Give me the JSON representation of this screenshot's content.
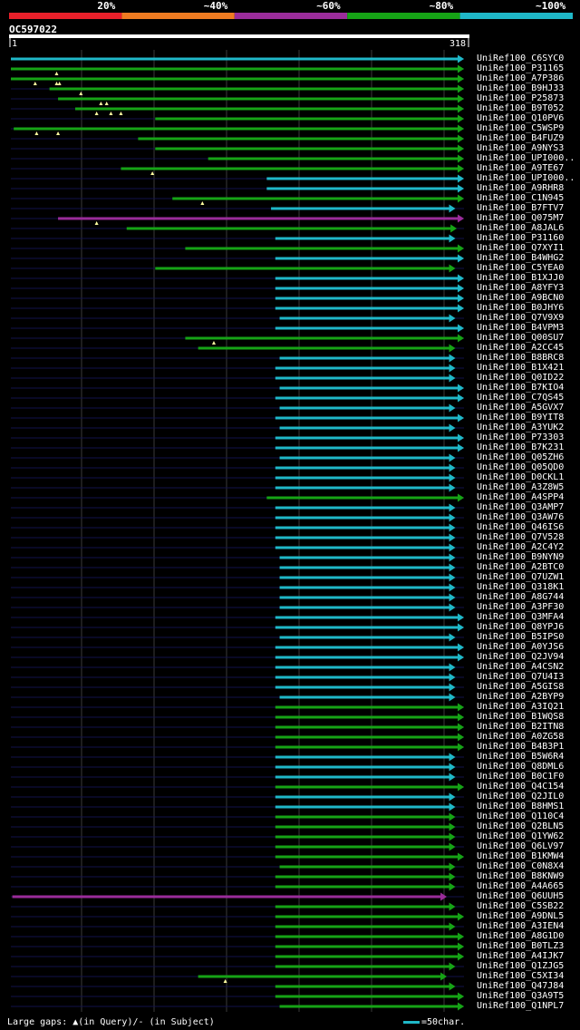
{
  "query": {
    "name": "OC597022",
    "start": "1",
    "end": "318",
    "length": 318
  },
  "identity_scale": [
    {
      "label": "20%",
      "color": "#e8202a"
    },
    {
      "label": "~40%",
      "color": "#ef7b21"
    },
    {
      "label": "~60%",
      "color": "#9a2c9a"
    },
    {
      "label": "~80%",
      "color": "#16a316"
    },
    {
      "label": "~100%",
      "color": "#1fb8c8"
    }
  ],
  "footer": {
    "gaps_text": "Large gaps: ▲(in Query)/- (in Subject)",
    "scale_text": "=50char."
  },
  "hits": [
    {
      "id": "UniRef100_C6SYC0",
      "color": "cyan",
      "qs": 1,
      "qe": 318,
      "arrow": "full",
      "ticks": []
    },
    {
      "id": "UniRef100_P31165",
      "color": "green",
      "qs": 1,
      "qe": 318,
      "arrow": "full",
      "ticks": [
        33
      ]
    },
    {
      "id": "UniRef100_A7P386",
      "color": "green",
      "qs": 1,
      "qe": 318,
      "arrow": "full",
      "ticks": [
        18,
        33,
        35
      ]
    },
    {
      "id": "UniRef100_B9HJ33",
      "color": "green",
      "qs": 28,
      "qe": 318,
      "arrow": "full",
      "ticks": [
        50
      ]
    },
    {
      "id": "UniRef100_P25873",
      "color": "green",
      "qs": 34,
      "qe": 318,
      "arrow": "full",
      "ticks": [
        64,
        68
      ]
    },
    {
      "id": "UniRef100_B9T052",
      "color": "green",
      "qs": 46,
      "qe": 318,
      "arrow": "full",
      "ticks": [
        61,
        71,
        78
      ]
    },
    {
      "id": "UniRef100_Q10PV6",
      "color": "green",
      "qs": 102,
      "qe": 318,
      "arrow": "full",
      "ticks": []
    },
    {
      "id": "UniRef100_C5WSP9",
      "color": "green",
      "qs": 3,
      "qe": 318,
      "arrow": "full",
      "ticks": [
        19,
        34
      ]
    },
    {
      "id": "UniRef100_B4FUZ9",
      "color": "green",
      "qs": 90,
      "qe": 318,
      "arrow": "full",
      "ticks": []
    },
    {
      "id": "UniRef100_A9NYS3",
      "color": "green",
      "qs": 102,
      "qe": 318,
      "arrow": "full",
      "ticks": []
    },
    {
      "id": "UniRef100_UPI000..",
      "color": "green",
      "qs": 139,
      "qe": 318,
      "arrow": "full",
      "ticks": []
    },
    {
      "id": "UniRef100_A9TE67",
      "color": "green",
      "qs": 78,
      "qe": 318,
      "arrow": "full",
      "ticks": [
        100
      ]
    },
    {
      "id": "UniRef100_UPI000..",
      "color": "cyan",
      "qs": 180,
      "qe": 318,
      "arrow": "full",
      "ticks": []
    },
    {
      "id": "UniRef100_A9RHR8",
      "color": "cyan",
      "qs": 180,
      "qe": 318,
      "arrow": "full",
      "ticks": []
    },
    {
      "id": "UniRef100_C1N945",
      "color": "green",
      "qs": 114,
      "qe": 318,
      "arrow": "full",
      "ticks": [
        135
      ]
    },
    {
      "id": "UniRef100_B7FTV7",
      "color": "cyan",
      "qs": 183,
      "qe": 312,
      "arrow": "short",
      "ticks": []
    },
    {
      "id": "UniRef100_Q075M7",
      "color": "magenta",
      "qs": 34,
      "qe": 318,
      "arrow": "full",
      "ticks": [
        61
      ]
    },
    {
      "id": "UniRef100_A8JAL6",
      "color": "green",
      "qs": 82,
      "qe": 313,
      "arrow": "short",
      "ticks": []
    },
    {
      "id": "UniRef100_P31160",
      "color": "cyan",
      "qs": 186,
      "qe": 312,
      "arrow": "short",
      "ticks": []
    },
    {
      "id": "UniRef100_Q7XYI1",
      "color": "green",
      "qs": 123,
      "qe": 318,
      "arrow": "full",
      "ticks": []
    },
    {
      "id": "UniRef100_B4WHG2",
      "color": "cyan",
      "qs": 186,
      "qe": 318,
      "arrow": "full",
      "ticks": []
    },
    {
      "id": "UniRef100_C5YEA0",
      "color": "green",
      "qs": 102,
      "qe": 312,
      "arrow": "short",
      "ticks": []
    },
    {
      "id": "UniRef100_B1XJJ0",
      "color": "cyan",
      "qs": 186,
      "qe": 318,
      "arrow": "full",
      "ticks": []
    },
    {
      "id": "UniRef100_A8YFY3",
      "color": "cyan",
      "qs": 186,
      "qe": 318,
      "arrow": "full",
      "ticks": []
    },
    {
      "id": "UniRef100_A9BCN0",
      "color": "cyan",
      "qs": 186,
      "qe": 318,
      "arrow": "full",
      "ticks": []
    },
    {
      "id": "UniRef100_B0JHY6",
      "color": "cyan",
      "qs": 186,
      "qe": 318,
      "arrow": "full",
      "ticks": []
    },
    {
      "id": "UniRef100_Q7V9X9",
      "color": "cyan",
      "qs": 189,
      "qe": 312,
      "arrow": "short",
      "ticks": []
    },
    {
      "id": "UniRef100_B4VPM3",
      "color": "cyan",
      "qs": 186,
      "qe": 318,
      "arrow": "full",
      "ticks": []
    },
    {
      "id": "UniRef100_Q00SU7",
      "color": "green",
      "qs": 123,
      "qe": 318,
      "arrow": "full",
      "ticks": [
        143
      ]
    },
    {
      "id": "UniRef100_A2CC45",
      "color": "green",
      "qs": 132,
      "qe": 312,
      "arrow": "short",
      "ticks": []
    },
    {
      "id": "UniRef100_B8BRC8",
      "color": "cyan",
      "qs": 189,
      "qe": 312,
      "arrow": "short",
      "ticks": []
    },
    {
      "id": "UniRef100_B1X421",
      "color": "cyan",
      "qs": 186,
      "qe": 312,
      "arrow": "short",
      "ticks": []
    },
    {
      "id": "UniRef100_Q0ID22",
      "color": "cyan",
      "qs": 186,
      "qe": 312,
      "arrow": "short",
      "ticks": []
    },
    {
      "id": "UniRef100_B7KIO4",
      "color": "cyan",
      "qs": 189,
      "qe": 318,
      "arrow": "full",
      "ticks": []
    },
    {
      "id": "UniRef100_C7QS45",
      "color": "cyan",
      "qs": 186,
      "qe": 318,
      "arrow": "full",
      "ticks": []
    },
    {
      "id": "UniRef100_A5GVX7",
      "color": "cyan",
      "qs": 189,
      "qe": 312,
      "arrow": "short",
      "ticks": []
    },
    {
      "id": "UniRef100_B9YIT8",
      "color": "cyan",
      "qs": 186,
      "qe": 318,
      "arrow": "full",
      "ticks": []
    },
    {
      "id": "UniRef100_A3YUK2",
      "color": "cyan",
      "qs": 189,
      "qe": 312,
      "arrow": "short",
      "ticks": []
    },
    {
      "id": "UniRef100_P73303",
      "color": "cyan",
      "qs": 186,
      "qe": 318,
      "arrow": "full",
      "ticks": []
    },
    {
      "id": "UniRef100_B7K231",
      "color": "cyan",
      "qs": 186,
      "qe": 318,
      "arrow": "full",
      "ticks": []
    },
    {
      "id": "UniRef100_Q05ZH6",
      "color": "cyan",
      "qs": 189,
      "qe": 312,
      "arrow": "short",
      "ticks": []
    },
    {
      "id": "UniRef100_Q05QD0",
      "color": "cyan",
      "qs": 186,
      "qe": 312,
      "arrow": "short",
      "ticks": []
    },
    {
      "id": "UniRef100_D0CKL1",
      "color": "cyan",
      "qs": 186,
      "qe": 312,
      "arrow": "short",
      "ticks": []
    },
    {
      "id": "UniRef100_A3Z8W5",
      "color": "cyan",
      "qs": 186,
      "qe": 312,
      "arrow": "short",
      "ticks": []
    },
    {
      "id": "UniRef100_A4SPP4",
      "color": "green",
      "qs": 180,
      "qe": 318,
      "arrow": "full",
      "ticks": []
    },
    {
      "id": "UniRef100_Q3AMP7",
      "color": "cyan",
      "qs": 186,
      "qe": 312,
      "arrow": "short",
      "ticks": []
    },
    {
      "id": "UniRef100_Q3AW76",
      "color": "cyan",
      "qs": 186,
      "qe": 312,
      "arrow": "short",
      "ticks": []
    },
    {
      "id": "UniRef100_Q46IS6",
      "color": "cyan",
      "qs": 186,
      "qe": 312,
      "arrow": "short",
      "ticks": []
    },
    {
      "id": "UniRef100_Q7V528",
      "color": "cyan",
      "qs": 186,
      "qe": 312,
      "arrow": "short",
      "ticks": []
    },
    {
      "id": "UniRef100_A2C4Y2",
      "color": "cyan",
      "qs": 186,
      "qe": 312,
      "arrow": "short",
      "ticks": []
    },
    {
      "id": "UniRef100_B9NYN9",
      "color": "cyan",
      "qs": 189,
      "qe": 312,
      "arrow": "short",
      "ticks": []
    },
    {
      "id": "UniRef100_A2BTC0",
      "color": "cyan",
      "qs": 189,
      "qe": 312,
      "arrow": "short",
      "ticks": []
    },
    {
      "id": "UniRef100_Q7UZW1",
      "color": "cyan",
      "qs": 189,
      "qe": 312,
      "arrow": "short",
      "ticks": []
    },
    {
      "id": "UniRef100_Q318K1",
      "color": "cyan",
      "qs": 189,
      "qe": 312,
      "arrow": "short",
      "ticks": []
    },
    {
      "id": "UniRef100_A8G744",
      "color": "cyan",
      "qs": 189,
      "qe": 312,
      "arrow": "short",
      "ticks": []
    },
    {
      "id": "UniRef100_A3PF30",
      "color": "cyan",
      "qs": 189,
      "qe": 312,
      "arrow": "short",
      "ticks": []
    },
    {
      "id": "UniRef100_Q3MFA4",
      "color": "cyan",
      "qs": 186,
      "qe": 318,
      "arrow": "full",
      "ticks": []
    },
    {
      "id": "UniRef100_Q8YPJ6",
      "color": "cyan",
      "qs": 186,
      "qe": 318,
      "arrow": "full",
      "ticks": []
    },
    {
      "id": "UniRef100_B5IPS0",
      "color": "cyan",
      "qs": 189,
      "qe": 312,
      "arrow": "short",
      "ticks": []
    },
    {
      "id": "UniRef100_A0YJS6",
      "color": "cyan",
      "qs": 186,
      "qe": 318,
      "arrow": "full",
      "ticks": []
    },
    {
      "id": "UniRef100_Q2JV94",
      "color": "cyan",
      "qs": 186,
      "qe": 318,
      "arrow": "full",
      "ticks": []
    },
    {
      "id": "UniRef100_A4CSN2",
      "color": "cyan",
      "qs": 186,
      "qe": 312,
      "arrow": "short",
      "ticks": []
    },
    {
      "id": "UniRef100_Q7U4I3",
      "color": "cyan",
      "qs": 186,
      "qe": 312,
      "arrow": "short",
      "ticks": []
    },
    {
      "id": "UniRef100_A5GIS8",
      "color": "cyan",
      "qs": 186,
      "qe": 312,
      "arrow": "short",
      "ticks": []
    },
    {
      "id": "UniRef100_A2BYP9",
      "color": "cyan",
      "qs": 189,
      "qe": 312,
      "arrow": "short",
      "ticks": []
    },
    {
      "id": "UniRef100_A3IQ21",
      "color": "green",
      "qs": 186,
      "qe": 318,
      "arrow": "full",
      "ticks": []
    },
    {
      "id": "UniRef100_B1WQS8",
      "color": "green",
      "qs": 186,
      "qe": 318,
      "arrow": "full",
      "ticks": []
    },
    {
      "id": "UniRef100_B2ITN8",
      "color": "green",
      "qs": 186,
      "qe": 318,
      "arrow": "full",
      "ticks": []
    },
    {
      "id": "UniRef100_A0ZG58",
      "color": "green",
      "qs": 186,
      "qe": 318,
      "arrow": "full",
      "ticks": []
    },
    {
      "id": "UniRef100_B4B3P1",
      "color": "green",
      "qs": 186,
      "qe": 318,
      "arrow": "full",
      "ticks": []
    },
    {
      "id": "UniRef100_B5W6R4",
      "color": "cyan",
      "qs": 186,
      "qe": 312,
      "arrow": "short",
      "ticks": []
    },
    {
      "id": "UniRef100_Q8DML6",
      "color": "cyan",
      "qs": 186,
      "qe": 312,
      "arrow": "short",
      "ticks": []
    },
    {
      "id": "UniRef100_B0C1F0",
      "color": "cyan",
      "qs": 186,
      "qe": 312,
      "arrow": "short",
      "ticks": []
    },
    {
      "id": "UniRef100_Q4C154",
      "color": "green",
      "qs": 186,
      "qe": 318,
      "arrow": "full",
      "ticks": []
    },
    {
      "id": "UniRef100_Q2JIL0",
      "color": "cyan",
      "qs": 186,
      "qe": 312,
      "arrow": "short",
      "ticks": []
    },
    {
      "id": "UniRef100_B8HMS1",
      "color": "cyan",
      "qs": 186,
      "qe": 312,
      "arrow": "short",
      "ticks": []
    },
    {
      "id": "UniRef100_Q110C4",
      "color": "green",
      "qs": 186,
      "qe": 312,
      "arrow": "short",
      "ticks": []
    },
    {
      "id": "UniRef100_Q2BLN5",
      "color": "green",
      "qs": 186,
      "qe": 312,
      "arrow": "short",
      "ticks": []
    },
    {
      "id": "UniRef100_Q1YW62",
      "color": "green",
      "qs": 186,
      "qe": 312,
      "arrow": "short",
      "ticks": []
    },
    {
      "id": "UniRef100_Q6LV97",
      "color": "green",
      "qs": 186,
      "qe": 312,
      "arrow": "short",
      "ticks": []
    },
    {
      "id": "UniRef100_B1KMW4",
      "color": "green",
      "qs": 186,
      "qe": 318,
      "arrow": "full",
      "ticks": []
    },
    {
      "id": "UniRef100_C0N8X4",
      "color": "green",
      "qs": 189,
      "qe": 312,
      "arrow": "short",
      "ticks": []
    },
    {
      "id": "UniRef100_B8KNW9",
      "color": "green",
      "qs": 186,
      "qe": 312,
      "arrow": "short",
      "ticks": []
    },
    {
      "id": "UniRef100_A4A665",
      "color": "green",
      "qs": 186,
      "qe": 312,
      "arrow": "short",
      "ticks": []
    },
    {
      "id": "UniRef100_Q6UUH5",
      "color": "magenta",
      "qs": 2,
      "qe": 306,
      "arrow": "short",
      "ticks": []
    },
    {
      "id": "UniRef100_C5SB22",
      "color": "green",
      "qs": 186,
      "qe": 312,
      "arrow": "short",
      "ticks": []
    },
    {
      "id": "UniRef100_A9DNL5",
      "color": "green",
      "qs": 186,
      "qe": 318,
      "arrow": "full",
      "ticks": []
    },
    {
      "id": "UniRef100_A3IEN4",
      "color": "green",
      "qs": 186,
      "qe": 312,
      "arrow": "short",
      "ticks": []
    },
    {
      "id": "UniRef100_A8G1D0",
      "color": "green",
      "qs": 186,
      "qe": 318,
      "arrow": "full",
      "ticks": []
    },
    {
      "id": "UniRef100_B0TLZ3",
      "color": "green",
      "qs": 186,
      "qe": 318,
      "arrow": "full",
      "ticks": []
    },
    {
      "id": "UniRef100_A4IJK7",
      "color": "green",
      "qs": 186,
      "qe": 318,
      "arrow": "full",
      "ticks": []
    },
    {
      "id": "UniRef100_Q1ZJG5",
      "color": "green",
      "qs": 186,
      "qe": 312,
      "arrow": "short",
      "ticks": []
    },
    {
      "id": "UniRef100_C5XI34",
      "color": "green",
      "qs": 132,
      "qe": 306,
      "arrow": "short",
      "ticks": [
        151
      ]
    },
    {
      "id": "UniRef100_Q47J84",
      "color": "green",
      "qs": 186,
      "qe": 312,
      "arrow": "short",
      "ticks": []
    },
    {
      "id": "UniRef100_Q3A9T5",
      "color": "green",
      "qs": 186,
      "qe": 318,
      "arrow": "full",
      "ticks": []
    },
    {
      "id": "UniRef100_Q1NPL7",
      "color": "green",
      "qs": 189,
      "qe": 318,
      "arrow": "full",
      "ticks": []
    }
  ]
}
